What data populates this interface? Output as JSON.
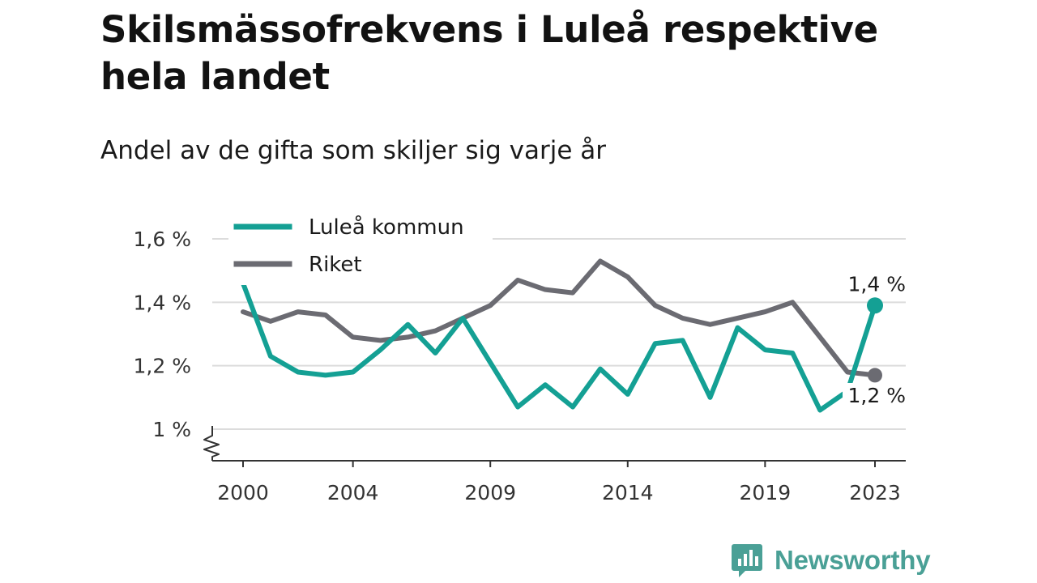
{
  "title": "Skilsmässofrekvens i Luleå respektive hela landet",
  "subtitle": "Andel av de gifta som skiljer sig varje år",
  "brand": {
    "name": "Newsworthy",
    "color": "#4aa096"
  },
  "chart_data": {
    "type": "line",
    "title": "Skilsmässofrekvens i Luleå respektive hela landet",
    "subtitle": "Andel av de gifta som skiljer sig varje år",
    "x": [
      2000,
      2001,
      2002,
      2003,
      2004,
      2005,
      2006,
      2007,
      2008,
      2009,
      2010,
      2011,
      2012,
      2013,
      2014,
      2015,
      2016,
      2017,
      2018,
      2019,
      2020,
      2021,
      2022,
      2023
    ],
    "x_ticks": [
      2000,
      2004,
      2009,
      2014,
      2019,
      2023
    ],
    "x_tick_labels": [
      "2000",
      "2004",
      "2009",
      "2014",
      "2019",
      "2023"
    ],
    "y_ticks": [
      1.0,
      1.2,
      1.4,
      1.6
    ],
    "y_tick_labels": [
      "1 %",
      "1,2 %",
      "1,4 %",
      "1,6 %"
    ],
    "ylim": [
      0.9,
      1.65
    ],
    "y_axis_break": true,
    "grid": true,
    "legend_position": "top-left",
    "series": [
      {
        "name": "Luleå kommun",
        "color": "#14a094",
        "values": [
          1.46,
          1.23,
          1.18,
          1.17,
          1.18,
          1.25,
          1.33,
          1.24,
          1.35,
          1.21,
          1.07,
          1.14,
          1.07,
          1.19,
          1.11,
          1.27,
          1.28,
          1.1,
          1.32,
          1.25,
          1.24,
          1.06,
          1.12,
          1.39
        ],
        "end_label": "1,4 %"
      },
      {
        "name": "Riket",
        "color": "#6b6b72",
        "values": [
          1.37,
          1.34,
          1.37,
          1.36,
          1.29,
          1.28,
          1.29,
          1.31,
          1.35,
          1.39,
          1.47,
          1.44,
          1.43,
          1.53,
          1.48,
          1.39,
          1.35,
          1.33,
          1.35,
          1.37,
          1.4,
          1.29,
          1.18,
          1.17
        ],
        "end_label": "1,2 %"
      }
    ]
  }
}
